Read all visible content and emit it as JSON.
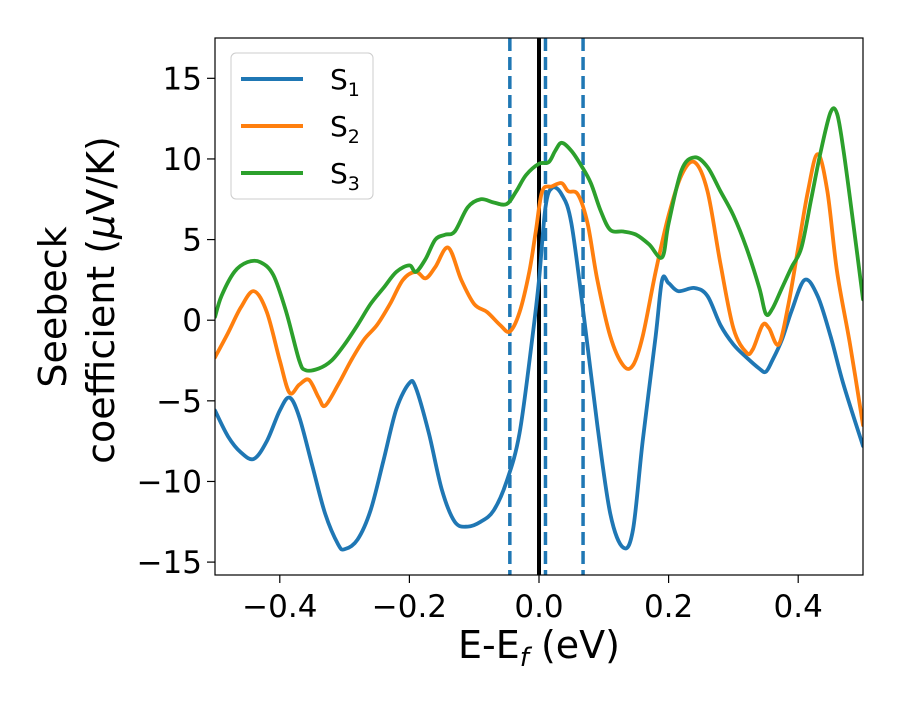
{
  "chart_data": {
    "type": "line",
    "xlabel": "E-E",
    "xlabel_sub": "f",
    "xlabel_unit": " (eV)",
    "ylabel_line1": "Seebeck",
    "ylabel_line2": "coefficient  (",
    "ylabel_mu": "μ",
    "ylabel_unit": "V/K)",
    "xlim": [
      -0.5,
      0.5
    ],
    "ylim": [
      -15.8,
      17.5
    ],
    "xticks": [
      -0.4,
      -0.2,
      0.0,
      0.2,
      0.4
    ],
    "xtick_labels": [
      "−0.4",
      "−0.2",
      "0.0",
      "0.2",
      "0.4"
    ],
    "yticks": [
      -15,
      -10,
      -5,
      0,
      5,
      10,
      15
    ],
    "ytick_labels": [
      "−15",
      "−10",
      "−5",
      "0",
      "5",
      "10",
      "15"
    ],
    "grid": false,
    "legend_position": "top-left",
    "vlines": [
      {
        "x": 0.0,
        "style": "solid",
        "color": "#000000"
      },
      {
        "x": -0.045,
        "style": "dashed",
        "color": "#1f77b4"
      },
      {
        "x": 0.01,
        "style": "dashed",
        "color": "#1f77b4"
      },
      {
        "x": 0.068,
        "style": "dashed",
        "color": "#1f77b4"
      }
    ],
    "series": [
      {
        "name": "S",
        "sub": "1",
        "color": "#1f77b4",
        "points": [
          [
            -0.5,
            -5.6
          ],
          [
            -0.48,
            -7.2
          ],
          [
            -0.46,
            -8.2
          ],
          [
            -0.44,
            -8.6
          ],
          [
            -0.42,
            -7.5
          ],
          [
            -0.4,
            -5.6
          ],
          [
            -0.385,
            -4.8
          ],
          [
            -0.37,
            -6.0
          ],
          [
            -0.35,
            -9.0
          ],
          [
            -0.33,
            -12.0
          ],
          [
            -0.31,
            -13.9
          ],
          [
            -0.3,
            -14.2
          ],
          [
            -0.28,
            -13.6
          ],
          [
            -0.26,
            -11.8
          ],
          [
            -0.24,
            -8.7
          ],
          [
            -0.22,
            -5.5
          ],
          [
            -0.2,
            -3.9
          ],
          [
            -0.19,
            -4.2
          ],
          [
            -0.17,
            -7.0
          ],
          [
            -0.15,
            -10.5
          ],
          [
            -0.13,
            -12.5
          ],
          [
            -0.11,
            -12.8
          ],
          [
            -0.09,
            -12.5
          ],
          [
            -0.07,
            -11.8
          ],
          [
            -0.05,
            -10.0
          ],
          [
            -0.03,
            -7.0
          ],
          [
            -0.01,
            -1.0
          ],
          [
            0.0,
            2.5
          ],
          [
            0.01,
            7.0
          ],
          [
            0.02,
            8.2
          ],
          [
            0.035,
            7.8
          ],
          [
            0.05,
            6.0
          ],
          [
            0.07,
            0.0
          ],
          [
            0.09,
            -6.5
          ],
          [
            0.11,
            -12.0
          ],
          [
            0.13,
            -14.1
          ],
          [
            0.145,
            -13.0
          ],
          [
            0.16,
            -7.5
          ],
          [
            0.18,
            -1.0
          ],
          [
            0.19,
            2.5
          ],
          [
            0.2,
            2.3
          ],
          [
            0.215,
            1.8
          ],
          [
            0.24,
            2.0
          ],
          [
            0.26,
            1.5
          ],
          [
            0.28,
            -0.3
          ],
          [
            0.3,
            -1.5
          ],
          [
            0.32,
            -2.3
          ],
          [
            0.34,
            -3.0
          ],
          [
            0.35,
            -3.2
          ],
          [
            0.36,
            -2.5
          ],
          [
            0.375,
            -1.2
          ],
          [
            0.39,
            0.6
          ],
          [
            0.41,
            2.5
          ],
          [
            0.43,
            1.5
          ],
          [
            0.45,
            -1.0
          ],
          [
            0.47,
            -4.0
          ],
          [
            0.5,
            -7.8
          ]
        ]
      },
      {
        "name": "S",
        "sub": "2",
        "color": "#ff7f0e",
        "points": [
          [
            -0.5,
            -2.3
          ],
          [
            -0.48,
            -0.8
          ],
          [
            -0.46,
            0.8
          ],
          [
            -0.44,
            1.8
          ],
          [
            -0.42,
            0.5
          ],
          [
            -0.4,
            -2.5
          ],
          [
            -0.385,
            -4.5
          ],
          [
            -0.37,
            -4.0
          ],
          [
            -0.355,
            -3.7
          ],
          [
            -0.34,
            -4.8
          ],
          [
            -0.33,
            -5.3
          ],
          [
            -0.31,
            -4.0
          ],
          [
            -0.29,
            -2.5
          ],
          [
            -0.27,
            -1.2
          ],
          [
            -0.25,
            -0.3
          ],
          [
            -0.23,
            1.0
          ],
          [
            -0.21,
            2.5
          ],
          [
            -0.19,
            3.0
          ],
          [
            -0.175,
            2.6
          ],
          [
            -0.16,
            3.3
          ],
          [
            -0.14,
            4.5
          ],
          [
            -0.12,
            2.5
          ],
          [
            -0.1,
            1.0
          ],
          [
            -0.08,
            0.5
          ],
          [
            -0.06,
            -0.3
          ],
          [
            -0.045,
            -0.7
          ],
          [
            -0.03,
            0.5
          ],
          [
            -0.015,
            3.0
          ],
          [
            -0.005,
            5.5
          ],
          [
            0.005,
            8.0
          ],
          [
            0.02,
            8.3
          ],
          [
            0.035,
            8.5
          ],
          [
            0.045,
            8.0
          ],
          [
            0.06,
            7.8
          ],
          [
            0.075,
            6.0
          ],
          [
            0.09,
            2.5
          ],
          [
            0.11,
            -1.0
          ],
          [
            0.13,
            -2.8
          ],
          [
            0.145,
            -2.8
          ],
          [
            0.16,
            -1.0
          ],
          [
            0.18,
            3.0
          ],
          [
            0.2,
            6.5
          ],
          [
            0.22,
            9.0
          ],
          [
            0.24,
            9.8
          ],
          [
            0.26,
            8.0
          ],
          [
            0.28,
            3.5
          ],
          [
            0.3,
            -0.5
          ],
          [
            0.32,
            -2.0
          ],
          [
            0.33,
            -1.8
          ],
          [
            0.345,
            -0.3
          ],
          [
            0.355,
            -0.5
          ],
          [
            0.37,
            -1.5
          ],
          [
            0.385,
            1.0
          ],
          [
            0.4,
            4.5
          ],
          [
            0.415,
            8.0
          ],
          [
            0.43,
            10.3
          ],
          [
            0.445,
            8.0
          ],
          [
            0.46,
            3.0
          ],
          [
            0.48,
            -1.5
          ],
          [
            0.5,
            -6.5
          ]
        ]
      },
      {
        "name": "S",
        "sub": "3",
        "color": "#2ca02c",
        "points": [
          [
            -0.5,
            0.2
          ],
          [
            -0.49,
            1.5
          ],
          [
            -0.47,
            3.0
          ],
          [
            -0.45,
            3.6
          ],
          [
            -0.43,
            3.6
          ],
          [
            -0.41,
            2.8
          ],
          [
            -0.39,
            0.5
          ],
          [
            -0.37,
            -2.5
          ],
          [
            -0.36,
            -3.1
          ],
          [
            -0.34,
            -3.0
          ],
          [
            -0.32,
            -2.5
          ],
          [
            -0.3,
            -1.5
          ],
          [
            -0.28,
            -0.3
          ],
          [
            -0.26,
            1.0
          ],
          [
            -0.24,
            2.0
          ],
          [
            -0.22,
            3.0
          ],
          [
            -0.2,
            3.4
          ],
          [
            -0.19,
            3.0
          ],
          [
            -0.175,
            3.8
          ],
          [
            -0.16,
            5.0
          ],
          [
            -0.145,
            5.3
          ],
          [
            -0.13,
            5.5
          ],
          [
            -0.11,
            7.0
          ],
          [
            -0.09,
            7.5
          ],
          [
            -0.07,
            7.3
          ],
          [
            -0.05,
            7.2
          ],
          [
            -0.035,
            8.0
          ],
          [
            -0.02,
            9.0
          ],
          [
            0.0,
            9.7
          ],
          [
            0.015,
            9.8
          ],
          [
            0.025,
            10.5
          ],
          [
            0.035,
            11.0
          ],
          [
            0.05,
            10.5
          ],
          [
            0.065,
            9.6
          ],
          [
            0.08,
            8.5
          ],
          [
            0.095,
            6.8
          ],
          [
            0.11,
            5.6
          ],
          [
            0.13,
            5.5
          ],
          [
            0.15,
            5.3
          ],
          [
            0.17,
            4.7
          ],
          [
            0.19,
            3.9
          ],
          [
            0.2,
            6.0
          ],
          [
            0.22,
            9.3
          ],
          [
            0.24,
            10.1
          ],
          [
            0.26,
            9.5
          ],
          [
            0.28,
            8.0
          ],
          [
            0.3,
            6.5
          ],
          [
            0.32,
            4.5
          ],
          [
            0.34,
            2.0
          ],
          [
            0.35,
            0.4
          ],
          [
            0.36,
            0.7
          ],
          [
            0.375,
            2.0
          ],
          [
            0.39,
            3.3
          ],
          [
            0.405,
            4.5
          ],
          [
            0.42,
            7.5
          ],
          [
            0.435,
            10.5
          ],
          [
            0.45,
            12.9
          ],
          [
            0.46,
            12.8
          ],
          [
            0.47,
            10.5
          ],
          [
            0.485,
            6.0
          ],
          [
            0.5,
            1.3
          ]
        ]
      }
    ]
  }
}
